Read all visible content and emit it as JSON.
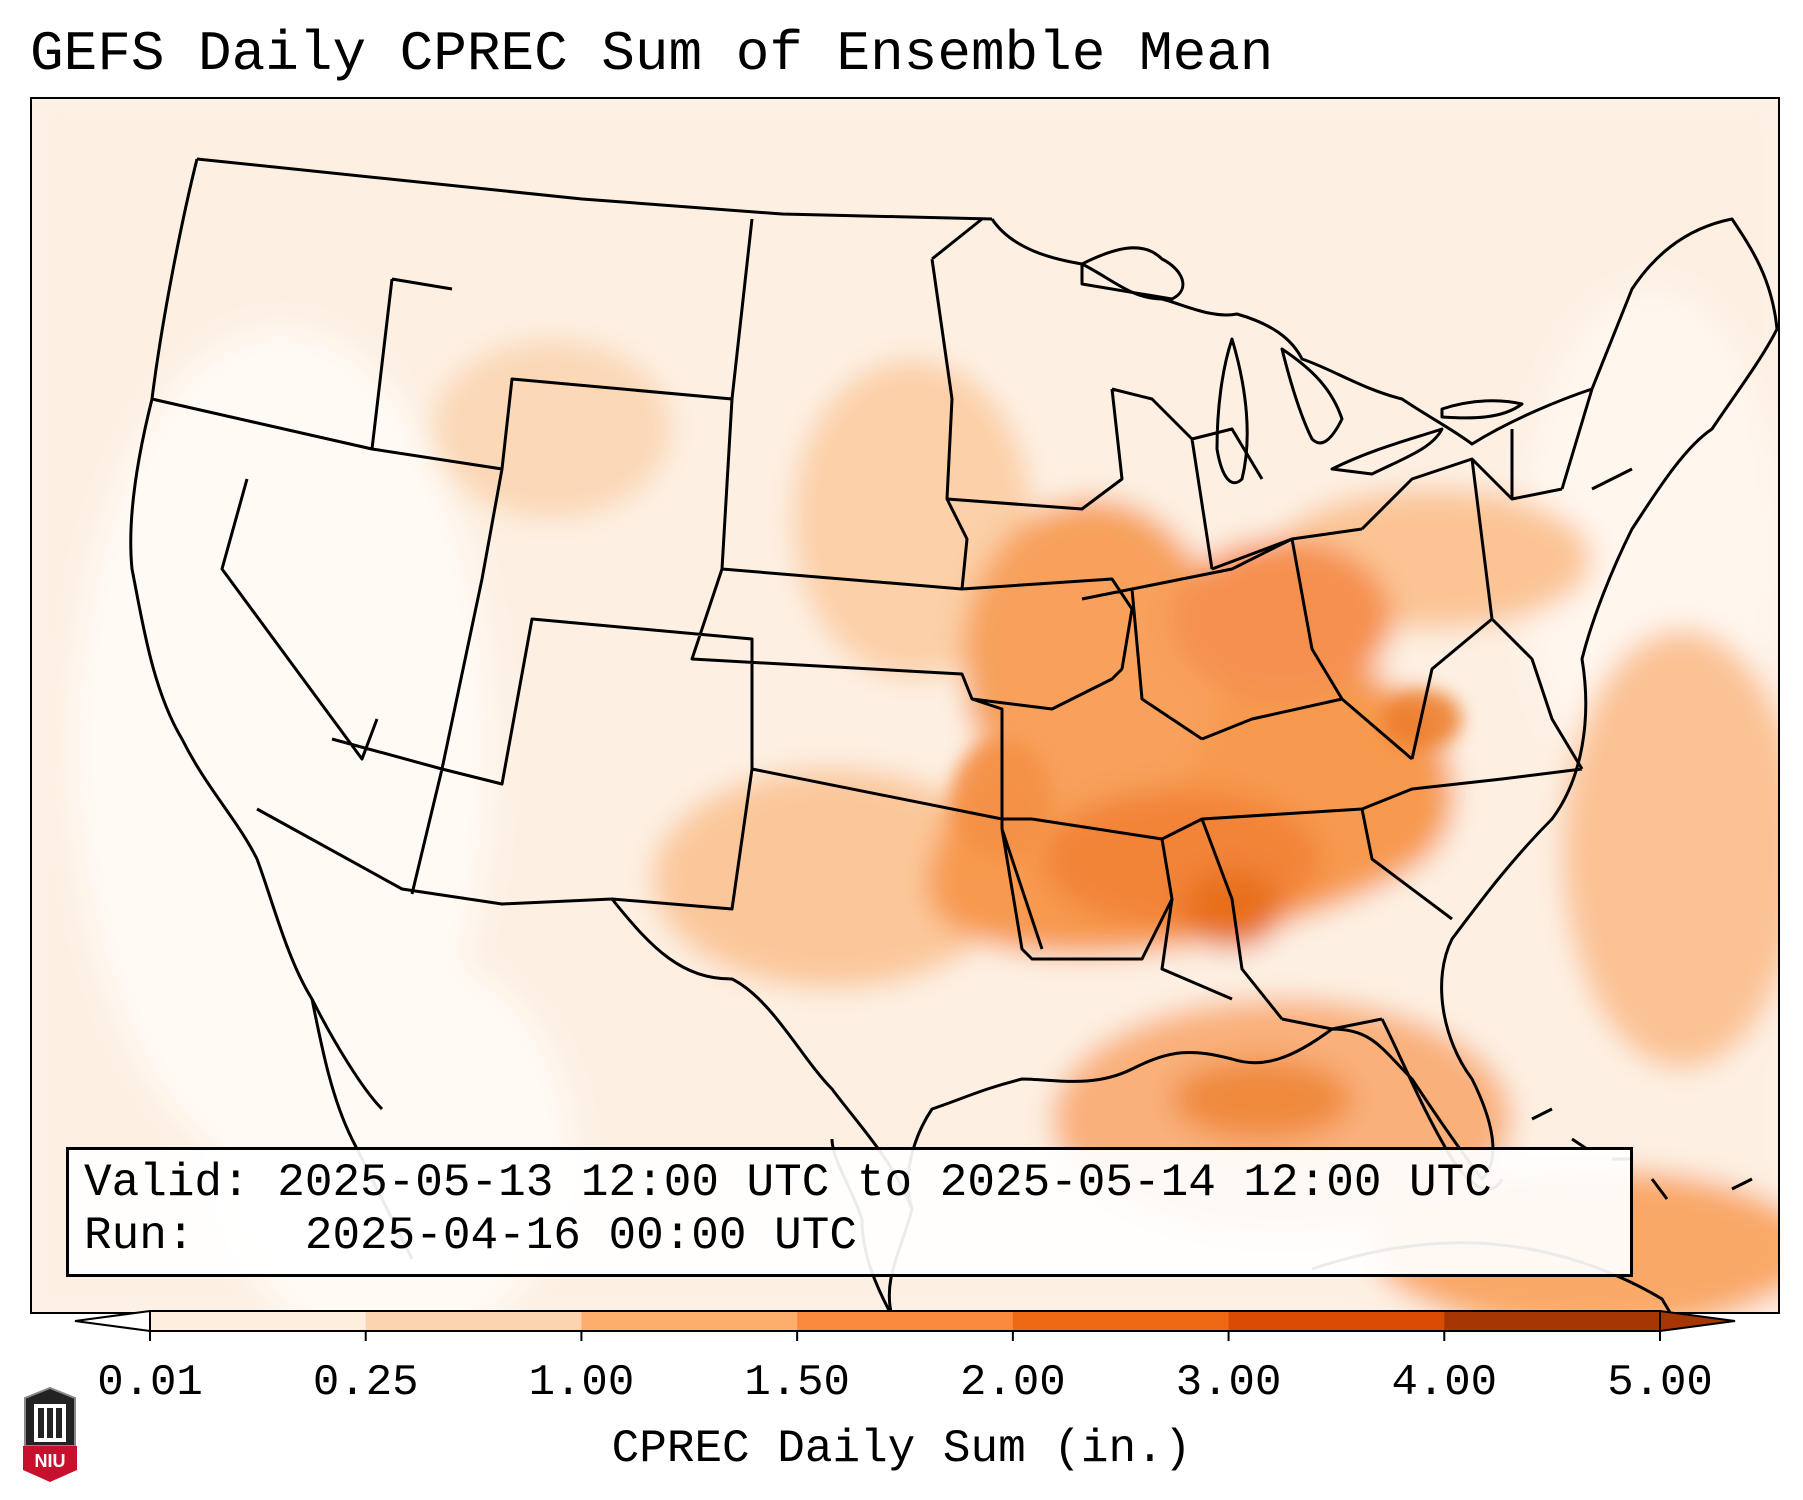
{
  "title": "GEFS Daily CPREC Sum of Ensemble Mean",
  "info": {
    "valid_label": "Valid:",
    "valid_value": "2025-05-13 12:00 UTC to 2025-05-14 12:00 UTC",
    "run_label": "Run:",
    "run_value": "2025-04-16 00:00 UTC"
  },
  "colorbar": {
    "label": "CPREC Daily Sum (in.)",
    "ticks": [
      "0.01",
      "0.25",
      "1.00",
      "1.50",
      "2.00",
      "3.00",
      "4.00",
      "5.00"
    ],
    "colors": [
      "#ffffff",
      "#fdeedd",
      "#fdd4b0",
      "#fdad6c",
      "#fb8a3c",
      "#ef6915",
      "#d84c04",
      "#a63603"
    ],
    "extend": "both"
  },
  "logo": {
    "text": "NIU",
    "icon": "niu-logo-icon",
    "color": "#c8102e"
  },
  "map": {
    "region": "Contiguous United States, Gulf of Mexico, western Atlantic",
    "field_colors": {
      "none": "#fff7ef",
      "light": "#fdeedd",
      "moderate": "#fcd8b8",
      "heavy": "#f9a560",
      "heaviest": "#f08030",
      "peak": "#d85a10"
    }
  }
}
